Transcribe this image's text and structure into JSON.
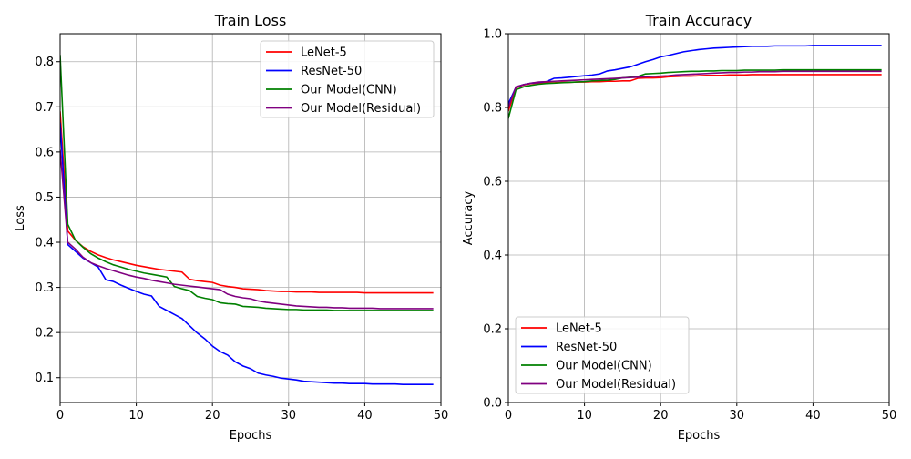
{
  "chart_data": [
    {
      "type": "line",
      "title": "Train Loss",
      "xlabel": "Epochs",
      "ylabel": "Loss",
      "xlim": [
        0,
        50
      ],
      "ylim": [
        0.045,
        0.862
      ],
      "xticks": [
        0,
        10,
        20,
        30,
        40,
        50
      ],
      "yticks": [
        0.1,
        0.2,
        0.3,
        0.4,
        0.5,
        0.6,
        0.7,
        0.8
      ],
      "grid": true,
      "legend_position": "top-right",
      "x": [
        0,
        1,
        2,
        3,
        4,
        5,
        6,
        7,
        8,
        9,
        10,
        11,
        12,
        13,
        14,
        15,
        16,
        17,
        18,
        19,
        20,
        21,
        22,
        23,
        24,
        25,
        26,
        27,
        28,
        29,
        30,
        31,
        32,
        33,
        34,
        35,
        36,
        37,
        38,
        39,
        40,
        41,
        42,
        43,
        44,
        45,
        46,
        47,
        48,
        49
      ],
      "series": [
        {
          "name": "LeNet-5",
          "color": "#ff0000",
          "values": [
            0.69,
            0.425,
            0.405,
            0.39,
            0.38,
            0.372,
            0.366,
            0.361,
            0.357,
            0.353,
            0.349,
            0.346,
            0.343,
            0.34,
            0.338,
            0.336,
            0.334,
            0.318,
            0.315,
            0.313,
            0.311,
            0.305,
            0.302,
            0.3,
            0.297,
            0.296,
            0.295,
            0.293,
            0.292,
            0.291,
            0.291,
            0.29,
            0.29,
            0.29,
            0.289,
            0.289,
            0.289,
            0.289,
            0.289,
            0.289,
            0.288,
            0.288,
            0.288,
            0.288,
            0.288,
            0.288,
            0.288,
            0.288,
            0.288,
            0.288
          ]
        },
        {
          "name": "ResNet-50",
          "color": "#0000ff",
          "values": [
            0.665,
            0.395,
            0.38,
            0.365,
            0.355,
            0.345,
            0.317,
            0.313,
            0.305,
            0.298,
            0.291,
            0.285,
            0.281,
            0.258,
            0.249,
            0.24,
            0.231,
            0.215,
            0.199,
            0.186,
            0.17,
            0.158,
            0.15,
            0.135,
            0.126,
            0.12,
            0.11,
            0.106,
            0.103,
            0.099,
            0.097,
            0.095,
            0.092,
            0.091,
            0.09,
            0.089,
            0.088,
            0.088,
            0.087,
            0.087,
            0.087,
            0.086,
            0.086,
            0.086,
            0.086,
            0.085,
            0.085,
            0.085,
            0.085,
            0.085
          ]
        },
        {
          "name": "Our Model(CNN)",
          "color": "#008000",
          "values": [
            0.815,
            0.44,
            0.405,
            0.389,
            0.375,
            0.365,
            0.357,
            0.35,
            0.345,
            0.34,
            0.336,
            0.332,
            0.329,
            0.326,
            0.323,
            0.302,
            0.297,
            0.293,
            0.28,
            0.276,
            0.273,
            0.266,
            0.264,
            0.263,
            0.258,
            0.257,
            0.256,
            0.254,
            0.253,
            0.252,
            0.251,
            0.251,
            0.25,
            0.25,
            0.25,
            0.25,
            0.249,
            0.249,
            0.249,
            0.249,
            0.249,
            0.249,
            0.249,
            0.249,
            0.249,
            0.249,
            0.249,
            0.249,
            0.249,
            0.249
          ]
        },
        {
          "name": "Our Model(Residual)",
          "color": "#800080",
          "values": [
            0.605,
            0.4,
            0.385,
            0.367,
            0.355,
            0.348,
            0.342,
            0.337,
            0.332,
            0.327,
            0.323,
            0.32,
            0.316,
            0.313,
            0.31,
            0.307,
            0.305,
            0.303,
            0.301,
            0.299,
            0.297,
            0.295,
            0.285,
            0.28,
            0.277,
            0.275,
            0.27,
            0.267,
            0.265,
            0.263,
            0.261,
            0.259,
            0.258,
            0.257,
            0.256,
            0.256,
            0.255,
            0.255,
            0.254,
            0.254,
            0.254,
            0.254,
            0.253,
            0.253,
            0.253,
            0.253,
            0.253,
            0.253,
            0.253,
            0.253
          ]
        }
      ]
    },
    {
      "type": "line",
      "title": "Train Accuracy",
      "xlabel": "Epochs",
      "ylabel": "Accuracy",
      "xlim": [
        0,
        50
      ],
      "ylim": [
        0.0,
        1.0
      ],
      "xticks": [
        0,
        10,
        20,
        30,
        40,
        50
      ],
      "yticks": [
        0.0,
        0.2,
        0.4,
        0.6,
        0.8,
        1.0
      ],
      "grid": true,
      "legend_position": "bottom-left",
      "x": [
        0,
        1,
        2,
        3,
        4,
        5,
        6,
        7,
        8,
        9,
        10,
        11,
        12,
        13,
        14,
        15,
        16,
        17,
        18,
        19,
        20,
        21,
        22,
        23,
        24,
        25,
        26,
        27,
        28,
        29,
        30,
        31,
        32,
        33,
        34,
        35,
        36,
        37,
        38,
        39,
        40,
        41,
        42,
        43,
        44,
        45,
        46,
        47,
        48,
        49
      ],
      "series": [
        {
          "name": "LeNet-5",
          "color": "#ff0000",
          "values": [
            0.79,
            0.853,
            0.861,
            0.865,
            0.866,
            0.867,
            0.867,
            0.868,
            0.868,
            0.869,
            0.869,
            0.87,
            0.87,
            0.871,
            0.871,
            0.872,
            0.872,
            0.879,
            0.88,
            0.88,
            0.881,
            0.883,
            0.884,
            0.885,
            0.885,
            0.886,
            0.887,
            0.887,
            0.887,
            0.888,
            0.888,
            0.888,
            0.889,
            0.889,
            0.889,
            0.889,
            0.889,
            0.889,
            0.889,
            0.889,
            0.889,
            0.889,
            0.889,
            0.889,
            0.889,
            0.889,
            0.889,
            0.889,
            0.889,
            0.889
          ]
        },
        {
          "name": "ResNet-50",
          "color": "#0000ff",
          "values": [
            0.81,
            0.855,
            0.862,
            0.866,
            0.868,
            0.87,
            0.879,
            0.88,
            0.882,
            0.884,
            0.886,
            0.888,
            0.891,
            0.899,
            0.902,
            0.906,
            0.91,
            0.917,
            0.924,
            0.93,
            0.937,
            0.941,
            0.946,
            0.951,
            0.954,
            0.957,
            0.959,
            0.961,
            0.962,
            0.963,
            0.964,
            0.965,
            0.966,
            0.966,
            0.966,
            0.967,
            0.967,
            0.967,
            0.967,
            0.967,
            0.968,
            0.968,
            0.968,
            0.968,
            0.968,
            0.968,
            0.968,
            0.968,
            0.968,
            0.968
          ]
        },
        {
          "name": "Our Model(CNN)",
          "color": "#008000",
          "values": [
            0.77,
            0.848,
            0.856,
            0.86,
            0.863,
            0.865,
            0.866,
            0.867,
            0.868,
            0.869,
            0.87,
            0.872,
            0.873,
            0.874,
            0.876,
            0.88,
            0.882,
            0.884,
            0.891,
            0.892,
            0.893,
            0.895,
            0.896,
            0.897,
            0.898,
            0.898,
            0.899,
            0.899,
            0.9,
            0.9,
            0.9,
            0.901,
            0.901,
            0.901,
            0.901,
            0.901,
            0.902,
            0.902,
            0.902,
            0.902,
            0.902,
            0.902,
            0.902,
            0.902,
            0.902,
            0.902,
            0.902,
            0.902,
            0.902,
            0.902
          ]
        },
        {
          "name": "Our Model(Residual)",
          "color": "#800080",
          "values": [
            0.8,
            0.856,
            0.862,
            0.866,
            0.869,
            0.87,
            0.871,
            0.872,
            0.873,
            0.874,
            0.875,
            0.876,
            0.877,
            0.878,
            0.879,
            0.88,
            0.881,
            0.882,
            0.883,
            0.884,
            0.885,
            0.886,
            0.888,
            0.889,
            0.89,
            0.891,
            0.892,
            0.893,
            0.894,
            0.895,
            0.895,
            0.896,
            0.896,
            0.897,
            0.897,
            0.897,
            0.898,
            0.898,
            0.898,
            0.898,
            0.898,
            0.898,
            0.898,
            0.898,
            0.898,
            0.898,
            0.898,
            0.898,
            0.898,
            0.898
          ]
        }
      ]
    }
  ]
}
